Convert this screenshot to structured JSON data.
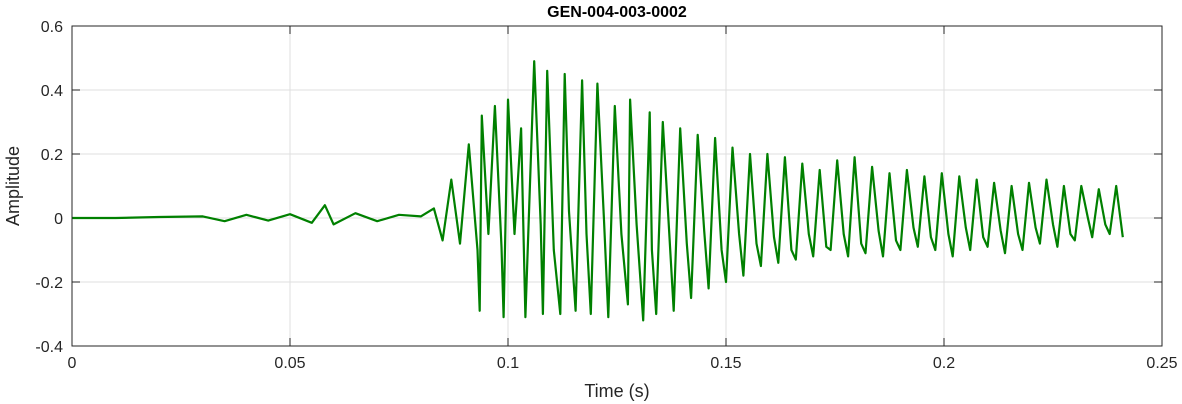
{
  "chart_data": {
    "type": "line",
    "title": "GEN-004-003-0002",
    "xlabel": "Time (s)",
    "ylabel": "Amplitude",
    "xlim": [
      0,
      0.25
    ],
    "ylim": [
      -0.4,
      0.6
    ],
    "xticks": [
      "0",
      "0.05",
      "0.1",
      "0.15",
      "0.2",
      "0.25"
    ],
    "yticks": [
      "-0.4",
      "-0.2",
      "0",
      "0.2",
      "0.4",
      "0.6"
    ],
    "grid": true,
    "series": [
      {
        "color": "#008000",
        "x": [
          0,
          0.01,
          0.02,
          0.03,
          0.035,
          0.04,
          0.045,
          0.05,
          0.055,
          0.058,
          0.06,
          0.065,
          0.07,
          0.075,
          0.08,
          0.083,
          0.085,
          0.087,
          0.089,
          0.091,
          0.093,
          0.0935,
          0.094,
          0.0955,
          0.097,
          0.0985,
          0.099,
          0.1,
          0.1015,
          0.103,
          0.104,
          0.106,
          0.1075,
          0.108,
          0.109,
          0.1105,
          0.112,
          0.113,
          0.114,
          0.1155,
          0.117,
          0.118,
          0.119,
          0.1205,
          0.122,
          0.123,
          0.1245,
          0.126,
          0.1275,
          0.128,
          0.1295,
          0.131,
          0.1325,
          0.133,
          0.134,
          0.1355,
          0.137,
          0.138,
          0.1395,
          0.141,
          0.142,
          0.1435,
          0.145,
          0.146,
          0.1475,
          0.149,
          0.15,
          0.1515,
          0.153,
          0.154,
          0.1555,
          0.157,
          0.158,
          0.1595,
          0.161,
          0.162,
          0.1635,
          0.165,
          0.166,
          0.1675,
          0.169,
          0.17,
          0.1715,
          0.173,
          0.174,
          0.1755,
          0.177,
          0.178,
          0.1795,
          0.181,
          0.182,
          0.1835,
          0.185,
          0.186,
          0.1875,
          0.189,
          0.19,
          0.1915,
          0.193,
          0.194,
          0.1955,
          0.197,
          0.198,
          0.1995,
          0.201,
          0.202,
          0.2035,
          0.205,
          0.206,
          0.2075,
          0.209,
          0.21,
          0.2115,
          0.213,
          0.214,
          0.2155,
          0.217,
          0.218,
          0.2195,
          0.221,
          0.222,
          0.2235,
          0.225,
          0.226,
          0.2275,
          0.229,
          0.23,
          0.2315,
          0.233,
          0.234,
          0.2355,
          0.237,
          0.238,
          0.2395,
          0.241
        ],
        "y": [
          0,
          0,
          0.003,
          0.005,
          -0.01,
          0.01,
          -0.008,
          0.012,
          -0.015,
          0.04,
          -0.02,
          0.015,
          -0.01,
          0.01,
          0.005,
          0.03,
          -0.07,
          0.12,
          -0.08,
          0.23,
          -0.1,
          -0.29,
          0.32,
          -0.05,
          0.35,
          -0.09,
          -0.31,
          0.37,
          -0.05,
          0.28,
          -0.31,
          0.49,
          -0.02,
          -0.3,
          0.46,
          -0.1,
          -0.3,
          0.45,
          0.02,
          -0.29,
          0.43,
          -0.05,
          -0.3,
          0.42,
          0.0,
          -0.31,
          0.35,
          -0.05,
          -0.27,
          0.37,
          -0.02,
          -0.32,
          0.33,
          -0.1,
          -0.3,
          0.3,
          -0.05,
          -0.29,
          0.28,
          -0.08,
          -0.25,
          0.26,
          -0.04,
          -0.22,
          0.25,
          -0.1,
          -0.2,
          0.22,
          -0.05,
          -0.18,
          0.2,
          -0.08,
          -0.15,
          0.2,
          -0.06,
          -0.14,
          0.19,
          -0.1,
          -0.13,
          0.17,
          -0.05,
          -0.12,
          0.15,
          -0.09,
          -0.1,
          0.18,
          -0.05,
          -0.12,
          0.19,
          -0.08,
          -0.11,
          0.16,
          -0.04,
          -0.12,
          0.14,
          -0.07,
          -0.1,
          0.15,
          -0.03,
          -0.09,
          0.13,
          -0.06,
          -0.1,
          0.14,
          -0.05,
          -0.12,
          0.13,
          -0.03,
          -0.1,
          0.12,
          -0.06,
          -0.09,
          0.11,
          -0.04,
          -0.11,
          0.1,
          -0.05,
          -0.1,
          0.11,
          -0.03,
          -0.08,
          0.12,
          -0.02,
          -0.09,
          0.1,
          -0.05,
          -0.07,
          0.1,
          0.0,
          -0.06,
          0.09,
          -0.02,
          -0.05,
          0.1,
          -0.06
        ]
      }
    ]
  }
}
